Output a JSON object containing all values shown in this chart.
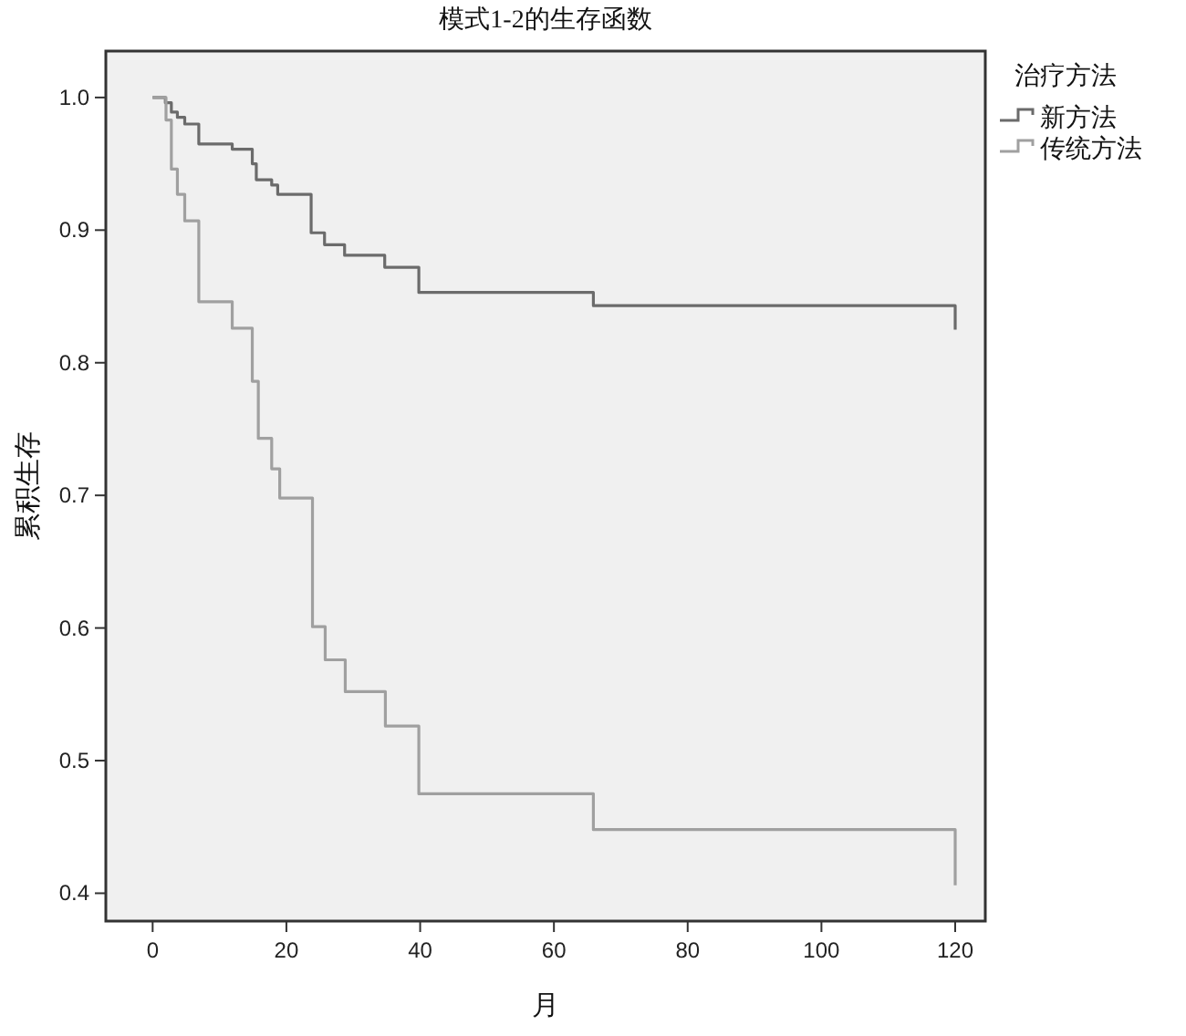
{
  "chart_data": {
    "type": "step",
    "title": "模式1-2的生存函数",
    "xlabel": "月",
    "ylabel": "累积生存",
    "legend_title": "治疗方法",
    "legend": "top right",
    "grid": false,
    "xlim": [
      -7,
      124.5
    ],
    "xticks": [
      0,
      20,
      40,
      60,
      80,
      100,
      120
    ],
    "ylim": [
      0.379,
      1.035
    ],
    "yticks": [
      0.4,
      0.5,
      0.6,
      0.7,
      0.8,
      0.9,
      {
        "value": 1,
        "label": "1.0"
      }
    ],
    "series": [
      {
        "name": "新方法",
        "color": "#6b6b6b",
        "x": [
          0,
          1.9,
          2.8,
          3.7,
          4.8,
          6.9,
          11.9,
          14.9,
          15.5,
          17.8,
          18.7,
          23.7,
          25.7,
          28.7,
          34.7,
          39.8,
          65.9,
          120
        ],
        "values": [
          1,
          0.996,
          0.989,
          0.985,
          0.98,
          0.965,
          0.961,
          0.95,
          0.938,
          0.934,
          0.927,
          0.898,
          0.889,
          0.881,
          0.872,
          0.853,
          0.843,
          0.825
        ]
      },
      {
        "name": "传统方法",
        "color": "#a0a0a0",
        "x": [
          0,
          2,
          2.8,
          3.7,
          4.8,
          6.9,
          11.9,
          14.9,
          15.8,
          17.8,
          19,
          23.9,
          25.8,
          28.8,
          34.8,
          39.8,
          65.9,
          120
        ],
        "values": [
          1,
          0.983,
          0.946,
          0.927,
          0.907,
          0.846,
          0.826,
          0.786,
          0.743,
          0.72,
          0.698,
          0.601,
          0.576,
          0.552,
          0.526,
          0.475,
          0.448,
          0.406
        ]
      }
    ]
  }
}
